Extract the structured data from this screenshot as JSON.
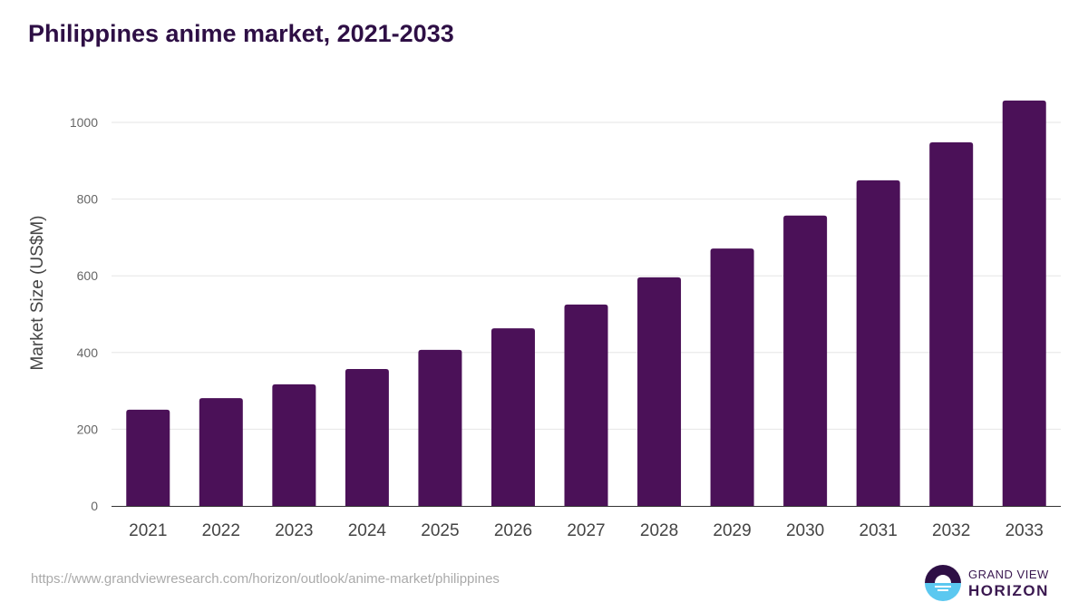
{
  "title": "Philippines anime market, 2021-2033",
  "source": "https://www.grandviewresearch.com/horizon/outlook/anime-market/philippines",
  "logo": {
    "line1": "GRAND VIEW",
    "line2": "HORIZON"
  },
  "colors": {
    "bar": "#4b1158",
    "logo_dark": "#2e0f45",
    "logo_light": "#5bc8f0"
  },
  "chart_data": {
    "type": "bar",
    "title": "Philippines anime market, 2021-2033",
    "xlabel": "",
    "ylabel": "Market Size (US$M)",
    "ylim": [
      0,
      1000
    ],
    "yticks": [
      0,
      200,
      400,
      600,
      800,
      1000
    ],
    "grid": true,
    "categories": [
      "2021",
      "2022",
      "2023",
      "2024",
      "2025",
      "2026",
      "2027",
      "2028",
      "2029",
      "2030",
      "2031",
      "2032",
      "2033"
    ],
    "values": [
      251,
      281,
      317,
      357,
      407,
      463,
      525,
      596,
      671,
      757,
      849,
      948,
      1057
    ]
  }
}
